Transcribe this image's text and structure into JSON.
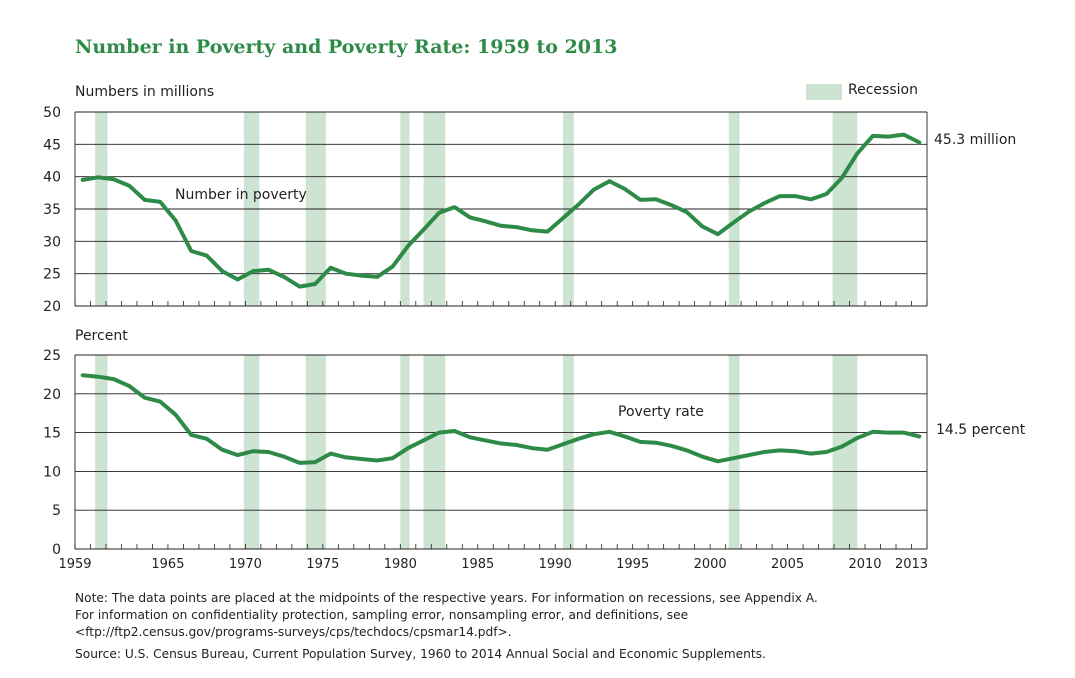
{
  "title": "Number in Poverty and Poverty Rate: 1959 to 2013",
  "legend": {
    "recession_label": "Recession",
    "recession_color": "#cde4d3"
  },
  "line_color": "#2e8b47",
  "notes": {
    "line1": "Note: The data points are placed at the midpoints of the respective years. For information on recessions, see Appendix A.",
    "line2": "For information on confidentiality protection, sampling error, nonsampling error, and definitions, see",
    "line3": "<ftp://ftp2.census.gov/programs-surveys/cps/techdocs/cpsmar14.pdf>.",
    "source": "Source: U.S. Census Bureau, Current Population Survey, 1960 to 2014 Annual Social and Economic Supplements."
  },
  "chart_data": [
    {
      "type": "line",
      "ylabel": "Numbers in millions",
      "ylim": [
        20,
        50
      ],
      "yticks": [
        "20",
        "25",
        "30",
        "35",
        "40",
        "45",
        "50"
      ],
      "series_label": "Number in poverty",
      "end_label": "45.3 million",
      "x": [
        1959,
        1960,
        1961,
        1962,
        1963,
        1964,
        1965,
        1966,
        1967,
        1968,
        1969,
        1970,
        1971,
        1972,
        1973,
        1974,
        1975,
        1976,
        1977,
        1978,
        1979,
        1980,
        1981,
        1982,
        1983,
        1984,
        1985,
        1986,
        1987,
        1988,
        1989,
        1990,
        1991,
        1992,
        1993,
        1994,
        1995,
        1996,
        1997,
        1998,
        1999,
        2000,
        2001,
        2002,
        2003,
        2004,
        2005,
        2006,
        2007,
        2008,
        2009,
        2010,
        2011,
        2012,
        2013
      ],
      "values": [
        39.5,
        39.9,
        39.6,
        38.6,
        36.4,
        36.1,
        33.2,
        28.5,
        27.8,
        25.4,
        24.1,
        25.4,
        25.6,
        24.5,
        23.0,
        23.4,
        25.9,
        25.0,
        24.7,
        24.5,
        26.1,
        29.3,
        31.8,
        34.4,
        35.3,
        33.7,
        33.1,
        32.4,
        32.2,
        31.7,
        31.5,
        33.6,
        35.7,
        38.0,
        39.3,
        38.1,
        36.4,
        36.5,
        35.6,
        34.5,
        32.3,
        31.1,
        32.9,
        34.6,
        35.9,
        37.0,
        37.0,
        36.5,
        37.3,
        39.8,
        43.6,
        46.3,
        46.2,
        46.5,
        45.3
      ],
      "grid": true
    },
    {
      "type": "line",
      "ylabel": "Percent",
      "ylim": [
        0,
        25
      ],
      "yticks": [
        "0",
        "5",
        "10",
        "15",
        "20",
        "25"
      ],
      "series_label": "Poverty rate",
      "end_label": "14.5 percent",
      "x": [
        1959,
        1960,
        1961,
        1962,
        1963,
        1964,
        1965,
        1966,
        1967,
        1968,
        1969,
        1970,
        1971,
        1972,
        1973,
        1974,
        1975,
        1976,
        1977,
        1978,
        1979,
        1980,
        1981,
        1982,
        1983,
        1984,
        1985,
        1986,
        1987,
        1988,
        1989,
        1990,
        1991,
        1992,
        1993,
        1994,
        1995,
        1996,
        1997,
        1998,
        1999,
        2000,
        2001,
        2002,
        2003,
        2004,
        2005,
        2006,
        2007,
        2008,
        2009,
        2010,
        2011,
        2012,
        2013
      ],
      "values": [
        22.4,
        22.2,
        21.9,
        21.0,
        19.5,
        19.0,
        17.3,
        14.7,
        14.2,
        12.8,
        12.1,
        12.6,
        12.5,
        11.9,
        11.1,
        11.2,
        12.3,
        11.8,
        11.6,
        11.4,
        11.7,
        13.0,
        14.0,
        15.0,
        15.2,
        14.4,
        14.0,
        13.6,
        13.4,
        13.0,
        12.8,
        13.5,
        14.2,
        14.8,
        15.1,
        14.5,
        13.8,
        13.7,
        13.3,
        12.7,
        11.9,
        11.3,
        11.7,
        12.1,
        12.5,
        12.7,
        12.6,
        12.3,
        12.5,
        13.2,
        14.3,
        15.1,
        15.0,
        15.0,
        14.5
      ],
      "grid": true
    }
  ],
  "xaxis": {
    "xlim": [
      1959,
      2014
    ],
    "tick_labels": [
      "1959",
      "1965",
      "1970",
      "1975",
      "1980",
      "1985",
      "1990",
      "1995",
      "2000",
      "2005",
      "2010",
      "2013"
    ]
  },
  "recessions": [
    [
      1960.3,
      1961.1
    ],
    [
      1969.9,
      1970.9
    ],
    [
      1973.9,
      1975.2
    ],
    [
      1980.0,
      1980.6
    ],
    [
      1981.5,
      1982.9
    ],
    [
      1990.5,
      1991.2
    ],
    [
      2001.2,
      2001.9
    ],
    [
      2007.9,
      2009.5
    ]
  ]
}
